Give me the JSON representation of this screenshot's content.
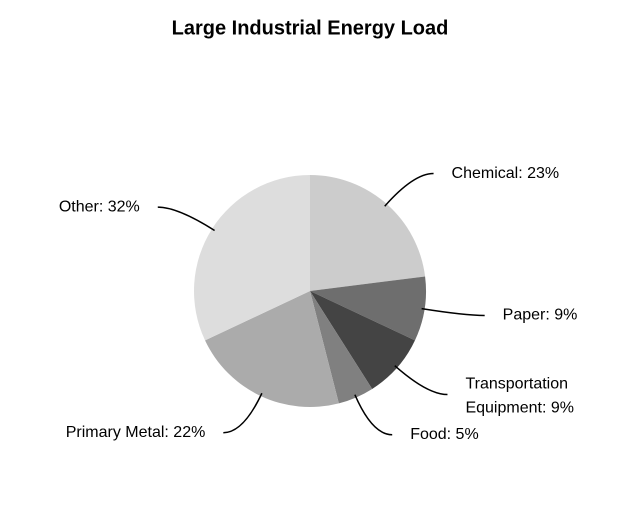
{
  "chart_data": {
    "type": "pie",
    "title": "Large Industrial Energy Load",
    "values": [
      23,
      9,
      9,
      5,
      22,
      32
    ],
    "value_labels": [
      "Chemical: 23%",
      "Paper: 9%",
      "Transportation Equipment: 9%",
      "Food: 5%",
      "Primary Metal: 22%",
      "Other: 32%"
    ],
    "colors": [
      "#cccccc",
      "#6e6e6e",
      "#444444",
      "#808080",
      "#ababab",
      "#dddddd"
    ]
  }
}
